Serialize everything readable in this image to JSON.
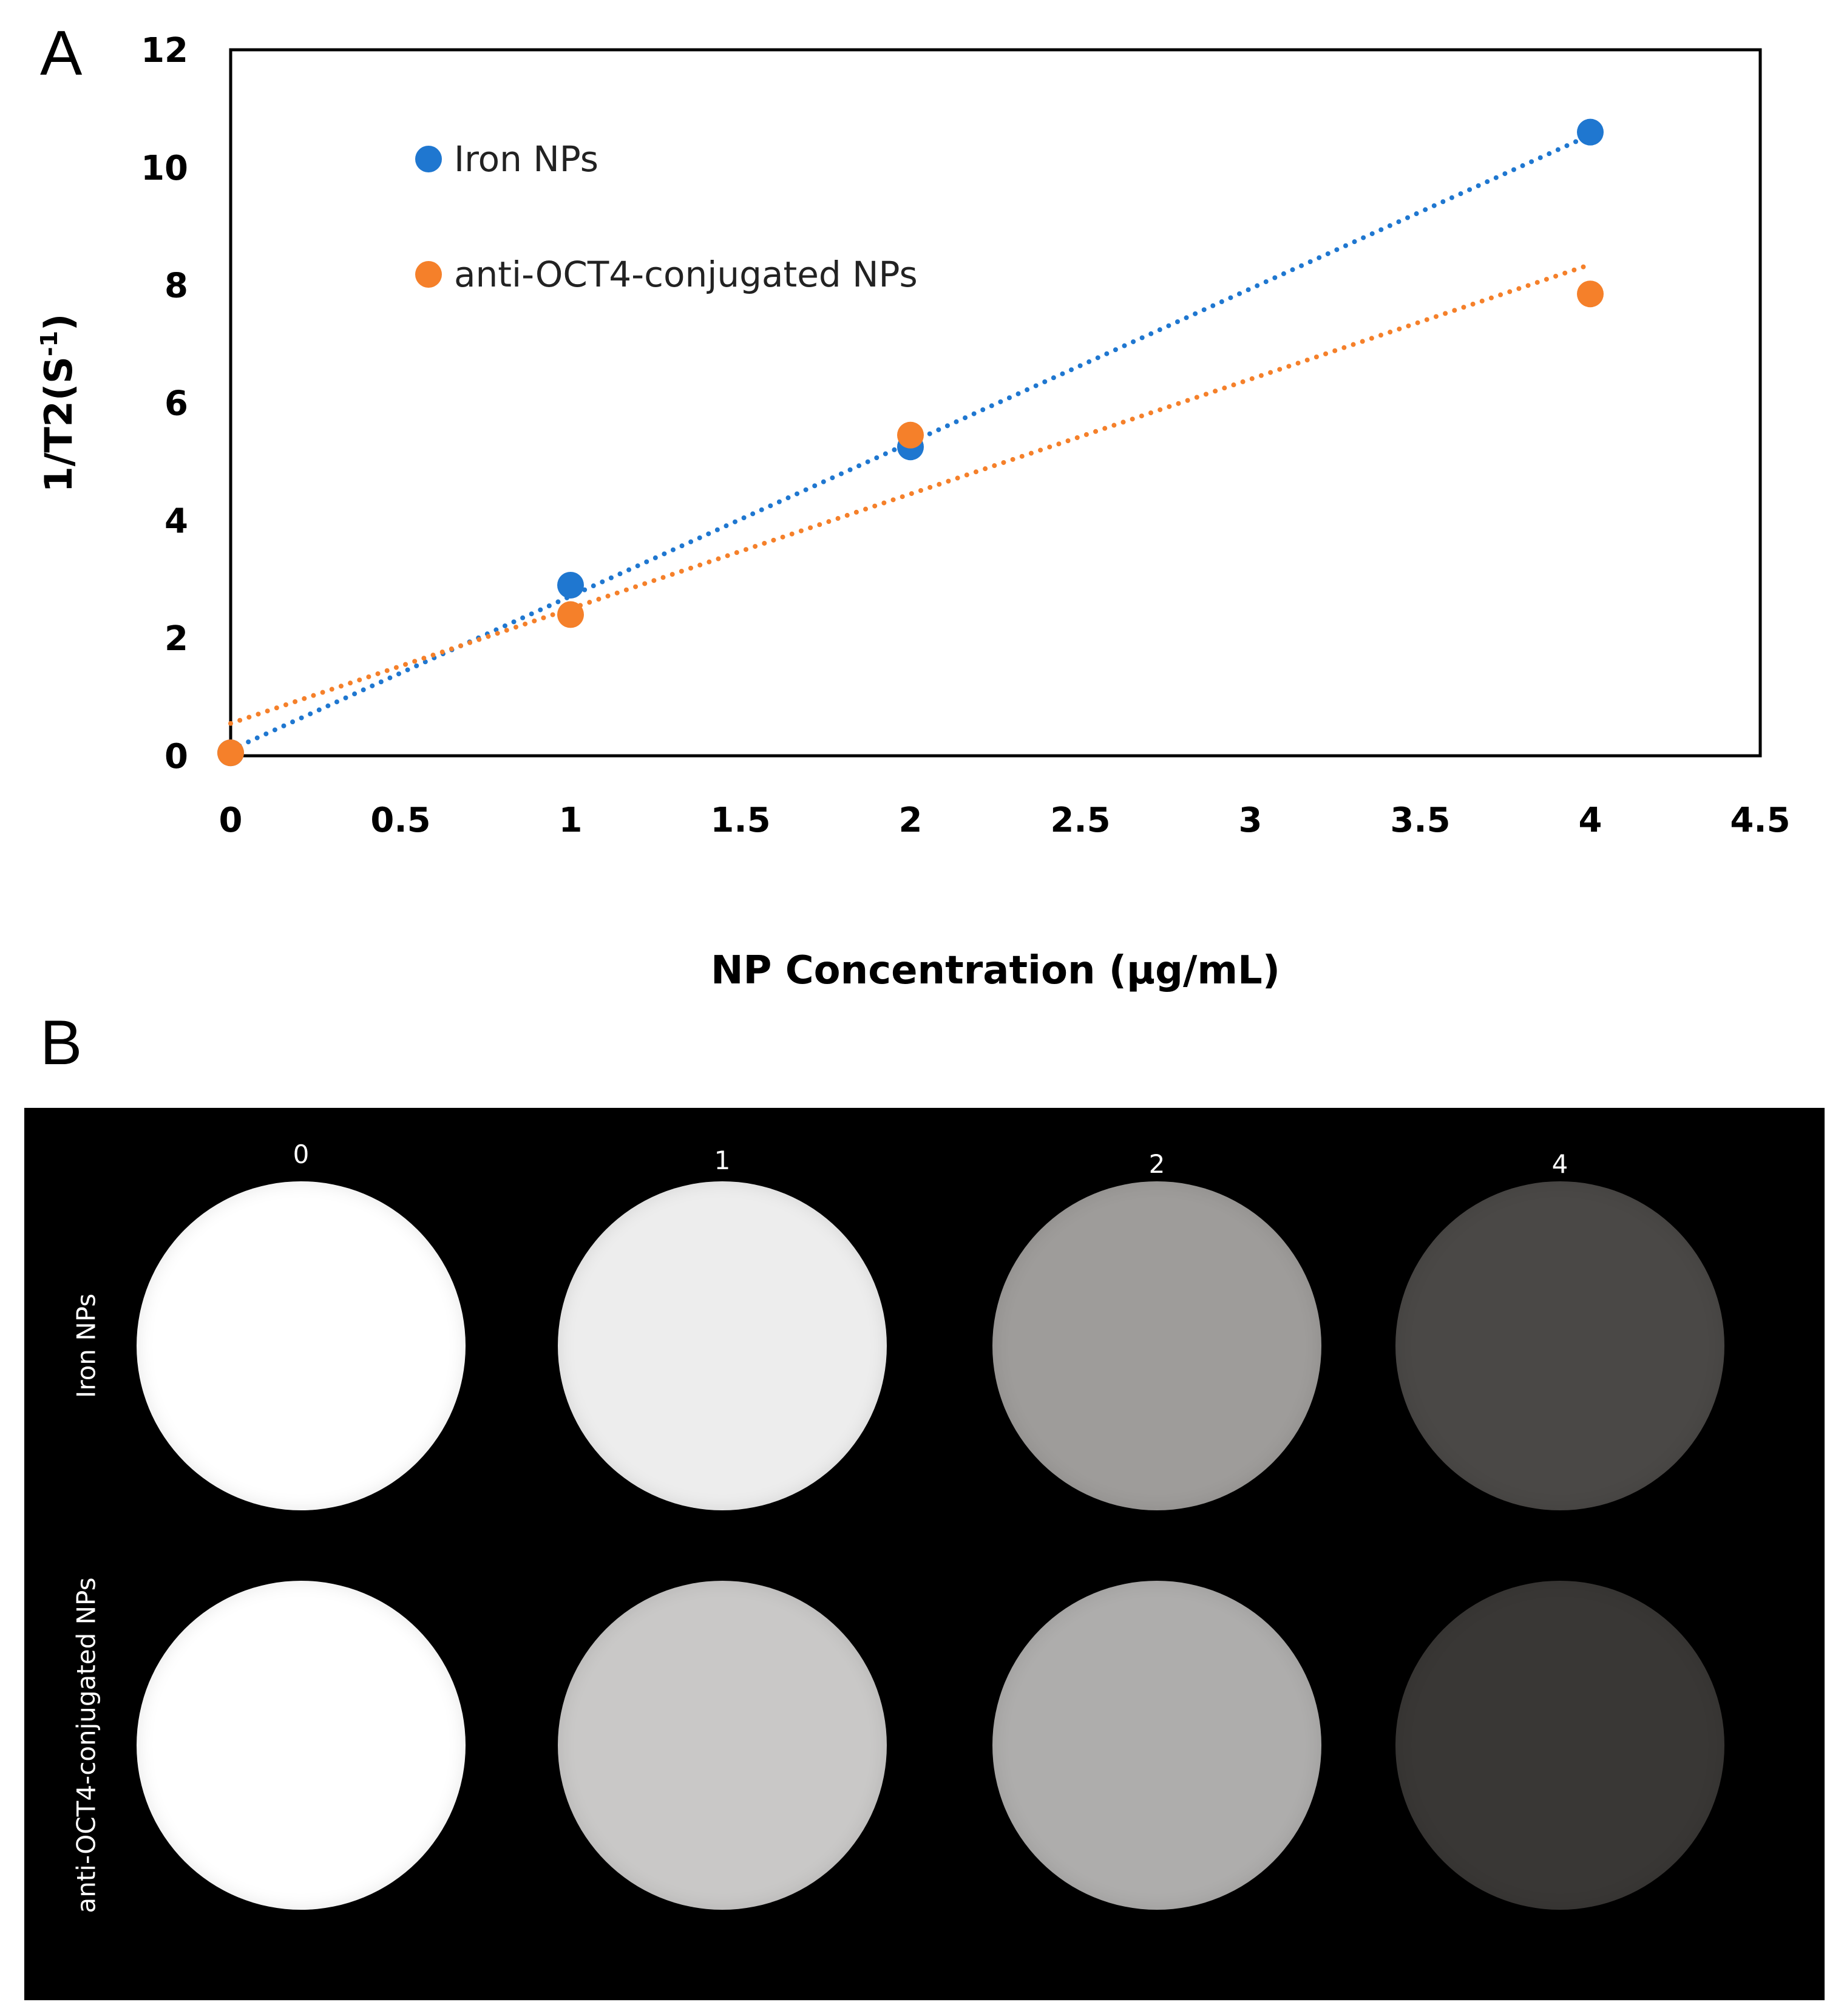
{
  "panels": {
    "a": "A",
    "b": "B"
  },
  "chart_data": {
    "type": "scatter",
    "title": "",
    "xlabel": "NP Concentration (µg/mL)",
    "ylabel": "1/T2(S-1)",
    "ylabel_parts": {
      "base": "1/T2(S",
      "superscript": "-1",
      "close": ")"
    },
    "xlim": [
      0,
      4.5
    ],
    "ylim": [
      0,
      12
    ],
    "xticks": [
      "0",
      "0.5",
      "1",
      "1.5",
      "2",
      "2.5",
      "3",
      "3.5",
      "4",
      "4.5"
    ],
    "yticks": [
      "0",
      "2",
      "4",
      "6",
      "8",
      "10",
      "12"
    ],
    "legend_position": "top-left",
    "series": [
      {
        "name": "Iron NPs",
        "color": "#1f77d0",
        "x": [
          0,
          1,
          2,
          4
        ],
        "y": [
          0.05,
          2.9,
          5.25,
          10.6
        ],
        "trendline": {
          "style": "dotted",
          "from": [
            0,
            0.1
          ],
          "to": [
            4,
            10.55
          ]
        }
      },
      {
        "name": "anti-OCT4-conjugated NPs",
        "color": "#f5802a",
        "x": [
          0,
          1,
          2,
          4
        ],
        "y": [
          0.05,
          2.4,
          5.45,
          7.85
        ],
        "trendline": {
          "style": "dotted",
          "from": [
            0,
            0.55
          ],
          "to": [
            4,
            8.35
          ]
        }
      }
    ]
  },
  "mri": {
    "concentrations": [
      "0",
      "1",
      "2",
      "4"
    ],
    "rows": [
      {
        "label": "Iron NPs",
        "shades": [
          "#ffffff",
          "#ededed",
          "#9e9c9a",
          "#4a4846"
        ]
      },
      {
        "label": "anti-OCT4-conjugated NPs",
        "shades": [
          "#ffffff",
          "#c9c8c7",
          "#aeadac",
          "#393735"
        ]
      }
    ]
  }
}
